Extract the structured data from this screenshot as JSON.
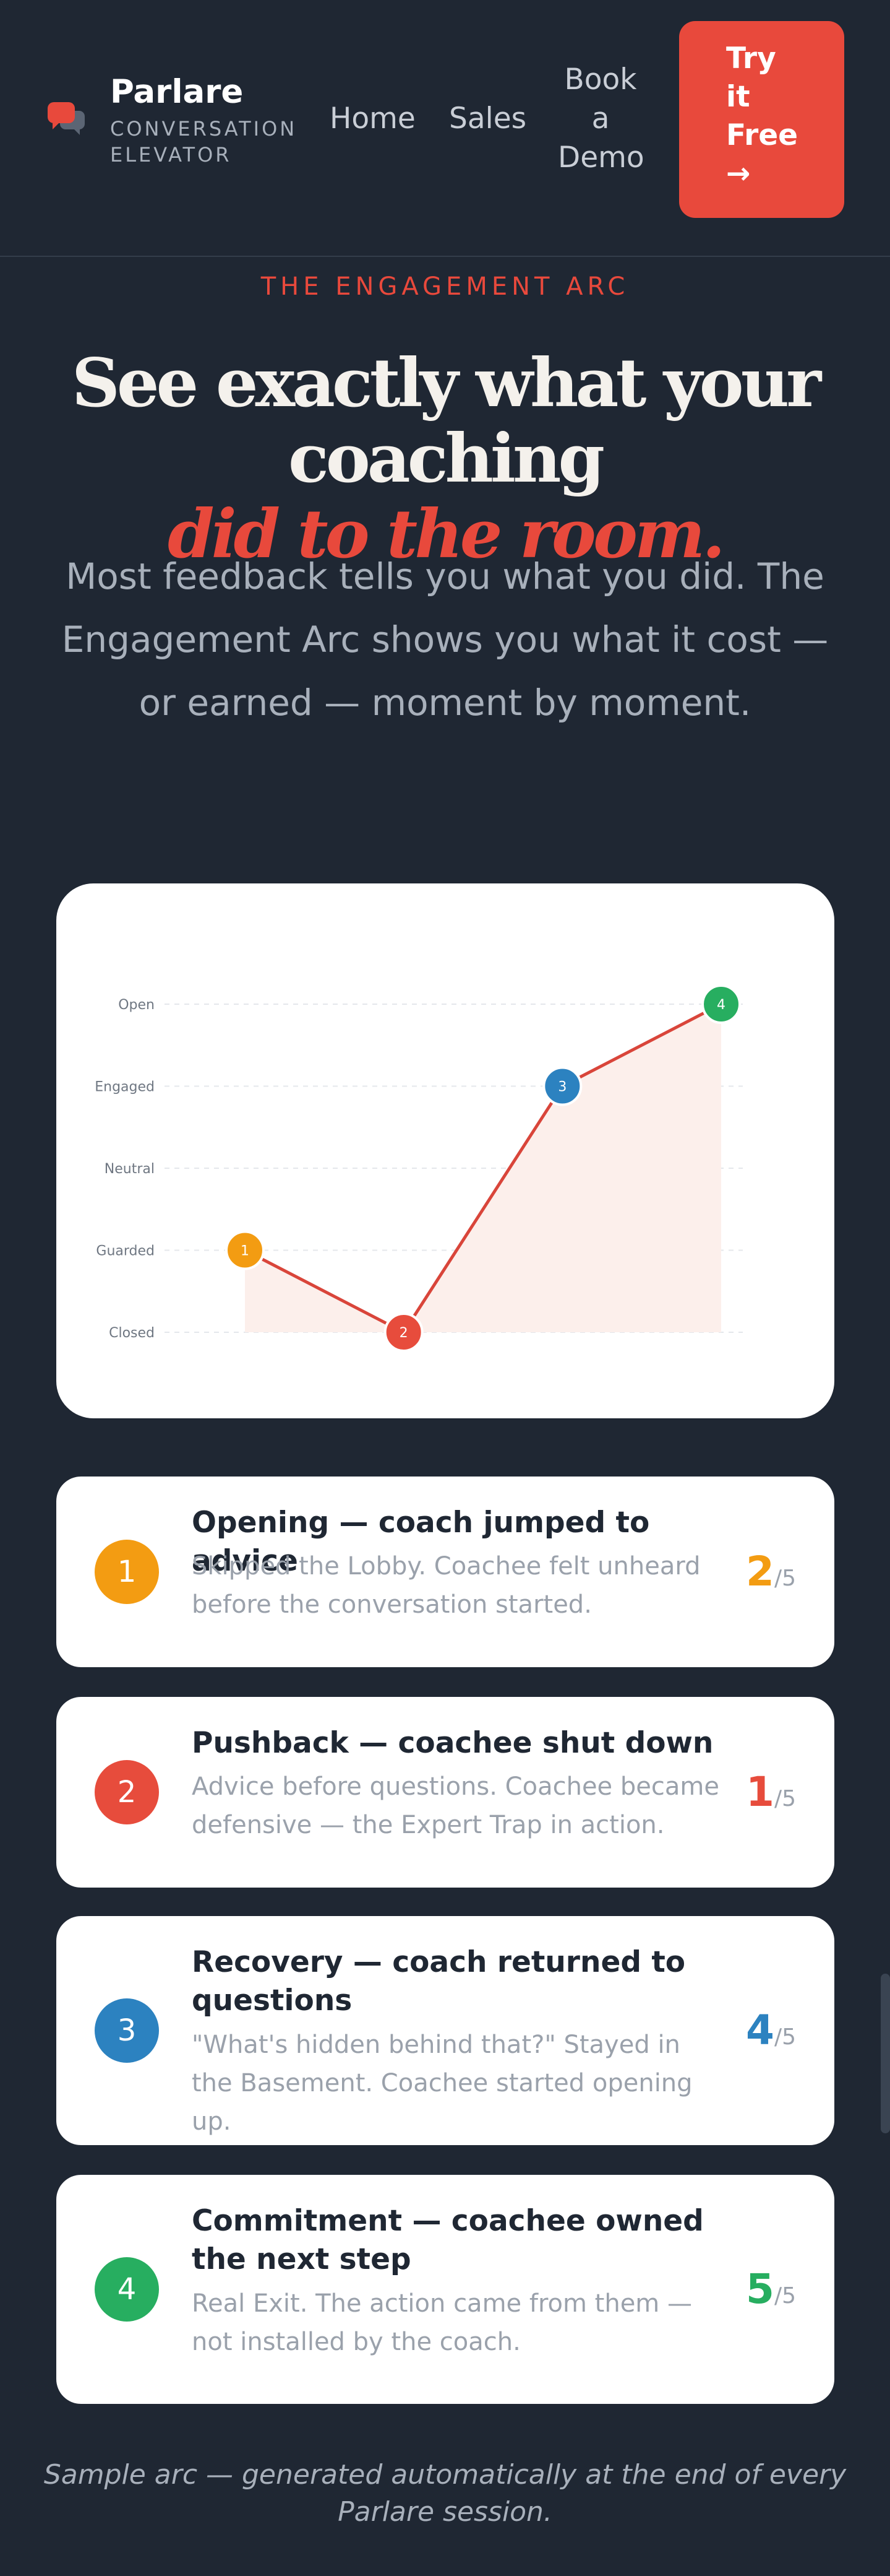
{
  "header": {
    "brand_name": "Parlare",
    "brand_tagline_line1": "CONVERSATION",
    "brand_tagline_line2": "ELEVATOR",
    "nav": [
      {
        "label": "Home"
      },
      {
        "label": "Sales"
      },
      {
        "label_lines": [
          "Book",
          "a",
          "Demo"
        ]
      }
    ],
    "cta_lines": [
      "Try",
      "it",
      "Free",
      "→"
    ]
  },
  "hero": {
    "eyebrow": "THE ENGAGEMENT ARC",
    "headline": "See exactly what your coaching",
    "headline_accent": "did to the room.",
    "lede": "Most feedback tells you what you did. The Engagement Arc shows you what it cost — or earned — moment by moment."
  },
  "chart_data": {
    "type": "line",
    "categories": [
      "1",
      "2",
      "3",
      "4"
    ],
    "y_levels": [
      "Closed",
      "Guarded",
      "Neutral",
      "Engaged",
      "Open"
    ],
    "values": [
      1,
      0,
      3,
      4
    ],
    "series_color": "#d9453a",
    "fill_color": "#fcefeb",
    "point_colors": [
      "#f39c12",
      "#e74c3c",
      "#2c82c0",
      "#27ae60"
    ],
    "grid": true
  },
  "moments": [
    {
      "number": "1",
      "color": "#f39c12",
      "title": "Opening — coach jumped to advice",
      "description": "Skipped the Lobby. Coachee felt unheard before the conversation started.",
      "score": "2",
      "score_max": "/5"
    },
    {
      "number": "2",
      "color": "#e74c3c",
      "title": "Pushback — coachee shut down",
      "description": "Advice before questions. Coachee became defensive — the Expert Trap in action.",
      "score": "1",
      "score_max": "/5"
    },
    {
      "number": "3",
      "color": "#2c82c0",
      "title": "Recovery — coach returned to questions",
      "description": "\"What's hidden behind that?\" Stayed in the Basement. Coachee started opening up.",
      "score": "4",
      "score_max": "/5"
    },
    {
      "number": "4",
      "color": "#27ae60",
      "title": "Commitment — coachee owned the next step",
      "description": "Real Exit. The action came from them — not installed by the coach.",
      "score": "5",
      "score_max": "/5"
    }
  ],
  "footnote": "Sample arc — generated automatically at the end of every Parlare session."
}
